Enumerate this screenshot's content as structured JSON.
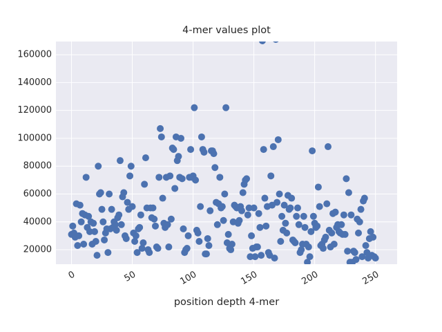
{
  "chart_data": {
    "type": "scatter",
    "title": "4-mer values plot",
    "x_label": "position depth 4-mer",
    "color": "#4c72b0",
    "grid": true,
    "xlim": [
      -12.8,
      267.8
    ],
    "xticks": [
      0,
      50,
      100,
      150,
      200,
      250
    ],
    "ylim": [
      9600,
      169500
    ],
    "yticks": [
      20000,
      40000,
      60000,
      80000,
      100000,
      120000,
      140000,
      160000
    ],
    "values": [
      31000,
      37000,
      32000,
      29000,
      53000,
      23000,
      30000,
      52000,
      40000,
      46000,
      24000,
      45000,
      72000,
      36000,
      44000,
      33000,
      40000,
      24000,
      39000,
      33000,
      26000,
      16000,
      80000,
      60000,
      61000,
      49000,
      40000,
      27000,
      32000,
      35000,
      18000,
      60000,
      35000,
      49000,
      36000,
      40000,
      38000,
      34000,
      43000,
      45000,
      84000,
      38000,
      58000,
      61000,
      30000,
      28000,
      54000,
      49000,
      73000,
      80000,
      51000,
      32000,
      26000,
      30000,
      18000,
      35000,
      36000,
      45000,
      21000,
      25000,
      67000,
      86000,
      50000,
      20000,
      18000,
      50000,
      43000,
      50000,
      42000,
      37000,
      22000,
      21000,
      72000,
      107000,
      101000,
      57000,
      39000,
      36000,
      72000,
      38000,
      22000,
      73000,
      42000,
      93000,
      92000,
      64000,
      101000,
      84000,
      87000,
      72000,
      100000,
      71000,
      35000,
      18000,
      20000,
      21000,
      30000,
      72000,
      92000,
      72000,
      73000,
      122000,
      70000,
      34000,
      32000,
      26000,
      51000,
      101000,
      92000,
      90000,
      17000,
      17000,
      28000,
      23000,
      48000,
      91000,
      91000,
      89000,
      79000,
      54000,
      38000,
      53000,
      72000,
      50000,
      51000,
      41000,
      60000,
      122000,
      25000,
      31000,
      21000,
      20000,
      24000,
      40000,
      52000,
      51000,
      50000,
      39000,
      41000,
      51000,
      48000,
      61000,
      67000,
      70000,
      71000,
      45000,
      50000,
      15000,
      30000,
      21000,
      50000,
      15000,
      22000,
      22000,
      46000,
      36000,
      16000,
      170000,
      92000,
      57000,
      37000,
      51000,
      18000,
      16000,
      73000,
      52000,
      94000,
      14000,
      171000,
      54000,
      99000,
      60000,
      26000,
      44000,
      34000,
      52000,
      39000,
      32000,
      59000,
      49000,
      50000,
      57000,
      27000,
      26000,
      25000,
      44000,
      50000,
      38000,
      18000,
      20000,
      24000,
      44000,
      36000,
      24000,
      11000,
      22000,
      15000,
      33000,
      91000,
      44000,
      39000,
      36000,
      37000,
      65000,
      51000,
      23000,
      24000,
      21000,
      27000,
      29000,
      53000,
      94000,
      34000,
      22000,
      32000,
      46000,
      24000,
      47000,
      36000,
      38000,
      33000,
      32000,
      38000,
      31000,
      45000,
      31000,
      71000,
      19000,
      61000,
      11000,
      45000,
      11000,
      19000,
      18000,
      13000,
      42000,
      32000,
      40000,
      49000,
      15000,
      55000,
      57000,
      23000,
      18000,
      14000,
      28000,
      33000,
      16000,
      29000,
      15000,
      14000
    ]
  }
}
